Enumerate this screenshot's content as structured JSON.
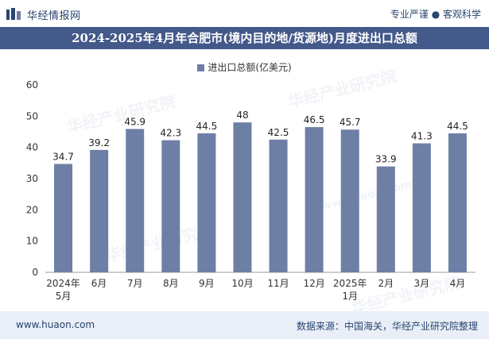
{
  "header": {
    "brand": "华经情报网",
    "tagline": "专业严谨 ● 客观科学"
  },
  "footer": {
    "url": "www.huaon.com",
    "source": "数据来源：中国海关，华经产业研究院整理"
  },
  "watermarks": [
    "华经产业研究院",
    "www.huaon.com"
  ],
  "colors": {
    "bar": "#6e7fa5",
    "title_bg": "#43598a",
    "footer_bg": "#e9eef7",
    "text_dark": "#27456e"
  },
  "chart_data": {
    "type": "bar",
    "title": "2024-2025年4月年合肥市(境内目的地/货源地)月度进出口总额",
    "series": [
      {
        "name": "进出口总额(亿美元)",
        "values": [
          34.7,
          39.2,
          45.9,
          42.3,
          44.5,
          48,
          42.5,
          46.5,
          45.7,
          33.9,
          41.3,
          44.5
        ]
      }
    ],
    "categories": [
      "2024年5月",
      "6月",
      "7月",
      "8月",
      "9月",
      "10月",
      "11月",
      "12月",
      "2025年1月",
      "2月",
      "3月",
      "4月"
    ],
    "category_lines": [
      [
        "2024年",
        "5月"
      ],
      [
        "6月"
      ],
      [
        "7月"
      ],
      [
        "8月"
      ],
      [
        "9月"
      ],
      [
        "10月"
      ],
      [
        "11月"
      ],
      [
        "12月"
      ],
      [
        "2025年",
        "1月"
      ],
      [
        "2月"
      ],
      [
        "3月"
      ],
      [
        "4月"
      ]
    ],
    "data_labels": [
      "34.7",
      "39.2",
      "45.9",
      "42.3",
      "44.5",
      "48",
      "42.5",
      "46.5",
      "45.7",
      "33.9",
      "41.3",
      "44.5"
    ],
    "yticks": [
      0,
      10,
      20,
      30,
      40,
      50,
      60
    ],
    "ylim": [
      0,
      60
    ],
    "xlabel": "",
    "ylabel": "",
    "legend_position": "top-center",
    "grid": false
  }
}
